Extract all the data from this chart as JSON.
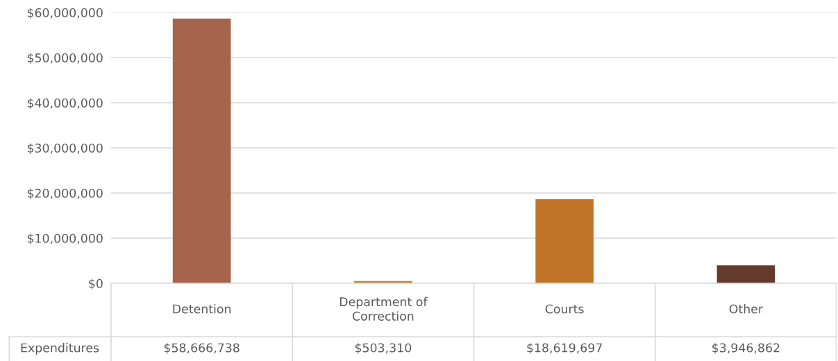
{
  "chart_data": {
    "type": "bar",
    "categories": [
      "Detention",
      "Department of Correction",
      "Courts",
      "Other"
    ],
    "series": [
      {
        "name": "Expenditures",
        "colors": [
          "#a5644b",
          "#c9853a",
          "#c07428",
          "#643a2c"
        ],
        "values": [
          58666738,
          503310,
          18619697,
          3946862
        ],
        "value_labels": [
          "$58,666,738",
          "$503,310",
          "$18,619,697",
          "$3,946,862"
        ]
      }
    ],
    "ylim": [
      0,
      60000000
    ],
    "yticks": [
      {
        "value": 0,
        "label": "$0"
      },
      {
        "value": 10000000,
        "label": "$10,000,000"
      },
      {
        "value": 20000000,
        "label": "$20,000,000"
      },
      {
        "value": 30000000,
        "label": "$30,000,000"
      },
      {
        "value": 40000000,
        "label": "$40,000,000"
      },
      {
        "value": 50000000,
        "label": "$50,000,000"
      },
      {
        "value": 60000000,
        "label": "$60,000,000"
      }
    ],
    "grid": "y"
  }
}
